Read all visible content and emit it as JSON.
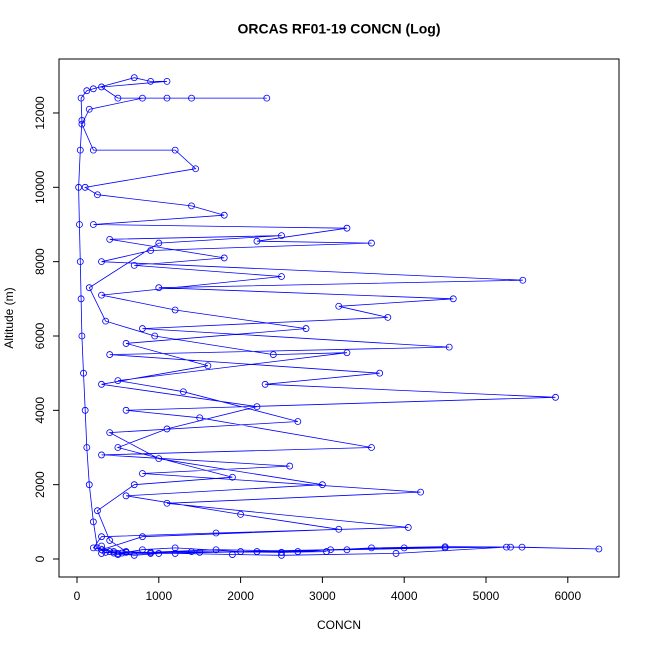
{
  "chart_data": {
    "type": "line",
    "title": "ORCAS RF01-19 CONCN (Log)",
    "x_label": "CONCN",
    "y_label": "Altitude (m)",
    "color": "#0000ff",
    "markers": true,
    "grid": false,
    "xlim": [
      -220,
      6626
    ],
    "ylim": [
      -484,
      13452
    ],
    "xticks": [
      0,
      1000,
      2000,
      3000,
      4000,
      5000,
      6000
    ],
    "yticks": [
      0,
      2000,
      4000,
      6000,
      8000,
      10000,
      12000
    ],
    "x": [
      300,
      450,
      600,
      800,
      1200,
      2000,
      3100,
      4000,
      5300,
      6380,
      5440,
      4500,
      3600,
      2700,
      1500,
      900,
      500,
      400,
      250,
      200,
      150,
      120,
      100,
      80,
      60,
      50,
      40,
      30,
      20,
      40,
      60,
      50,
      120,
      200,
      700,
      900,
      1100,
      300,
      500,
      2320,
      1400,
      1100,
      800,
      150,
      60,
      200,
      1200,
      1450,
      100,
      250,
      1400,
      1800,
      200,
      3300,
      2200,
      3600,
      900,
      300,
      5450,
      1000,
      4600,
      3200,
      3800,
      800,
      4550,
      400,
      3700,
      2300,
      5850,
      600,
      1500,
      3600,
      300,
      2600,
      800,
      4200,
      1100,
      4050,
      1700,
      300,
      200,
      500,
      700,
      1000,
      2200,
      3300,
      4500,
      5250,
      3900,
      2500,
      1900,
      1200,
      600,
      400,
      250,
      700,
      1900,
      500,
      1100,
      2200,
      300,
      1600,
      600,
      2800,
      1200,
      300,
      2500,
      700,
      1800,
      400,
      2500,
      1000,
      150,
      350,
      950,
      2400,
      3300,
      500,
      1300,
      2700,
      400,
      1000,
      3000,
      600,
      2000,
      3200,
      800,
      300,
      350,
      550,
      1400,
      2500,
      3050,
      1700,
      900,
      450,
      300
    ],
    "y": [
      150,
      200,
      180,
      250,
      300,
      200,
      250,
      300,
      320,
      270,
      320,
      330,
      300,
      200,
      180,
      150,
      120,
      200,
      300,
      1000,
      2000,
      3000,
      4000,
      5000,
      6000,
      7000,
      8000,
      9000,
      10000,
      11000,
      11800,
      12400,
      12600,
      12650,
      12950,
      12850,
      12850,
      12700,
      12400,
      12400,
      12400,
      12400,
      12400,
      12100,
      11700,
      11000,
      11000,
      10500,
      10000,
      9800,
      9500,
      9250,
      9000,
      8900,
      8550,
      8500,
      8300,
      8000,
      7500,
      7300,
      7000,
      6800,
      6500,
      6200,
      5700,
      5500,
      5000,
      4700,
      4350,
      4000,
      3800,
      3000,
      2800,
      2500,
      2300,
      1800,
      1500,
      850,
      700,
      600,
      300,
      150,
      100,
      150,
      200,
      250,
      300,
      320,
      150,
      100,
      120,
      150,
      200,
      500,
      1300,
      2000,
      2200,
      3000,
      3500,
      4100,
      4700,
      5200,
      5800,
      6200,
      6700,
      7100,
      7600,
      7900,
      8100,
      8600,
      8700,
      8500,
      7300,
      6400,
      6000,
      5500,
      5550,
      4800,
      4500,
      3700,
      3400,
      2700,
      2000,
      1700,
      1200,
      800,
      600,
      250,
      180,
      160,
      200,
      180,
      200,
      250,
      180,
      160,
      350
    ]
  }
}
